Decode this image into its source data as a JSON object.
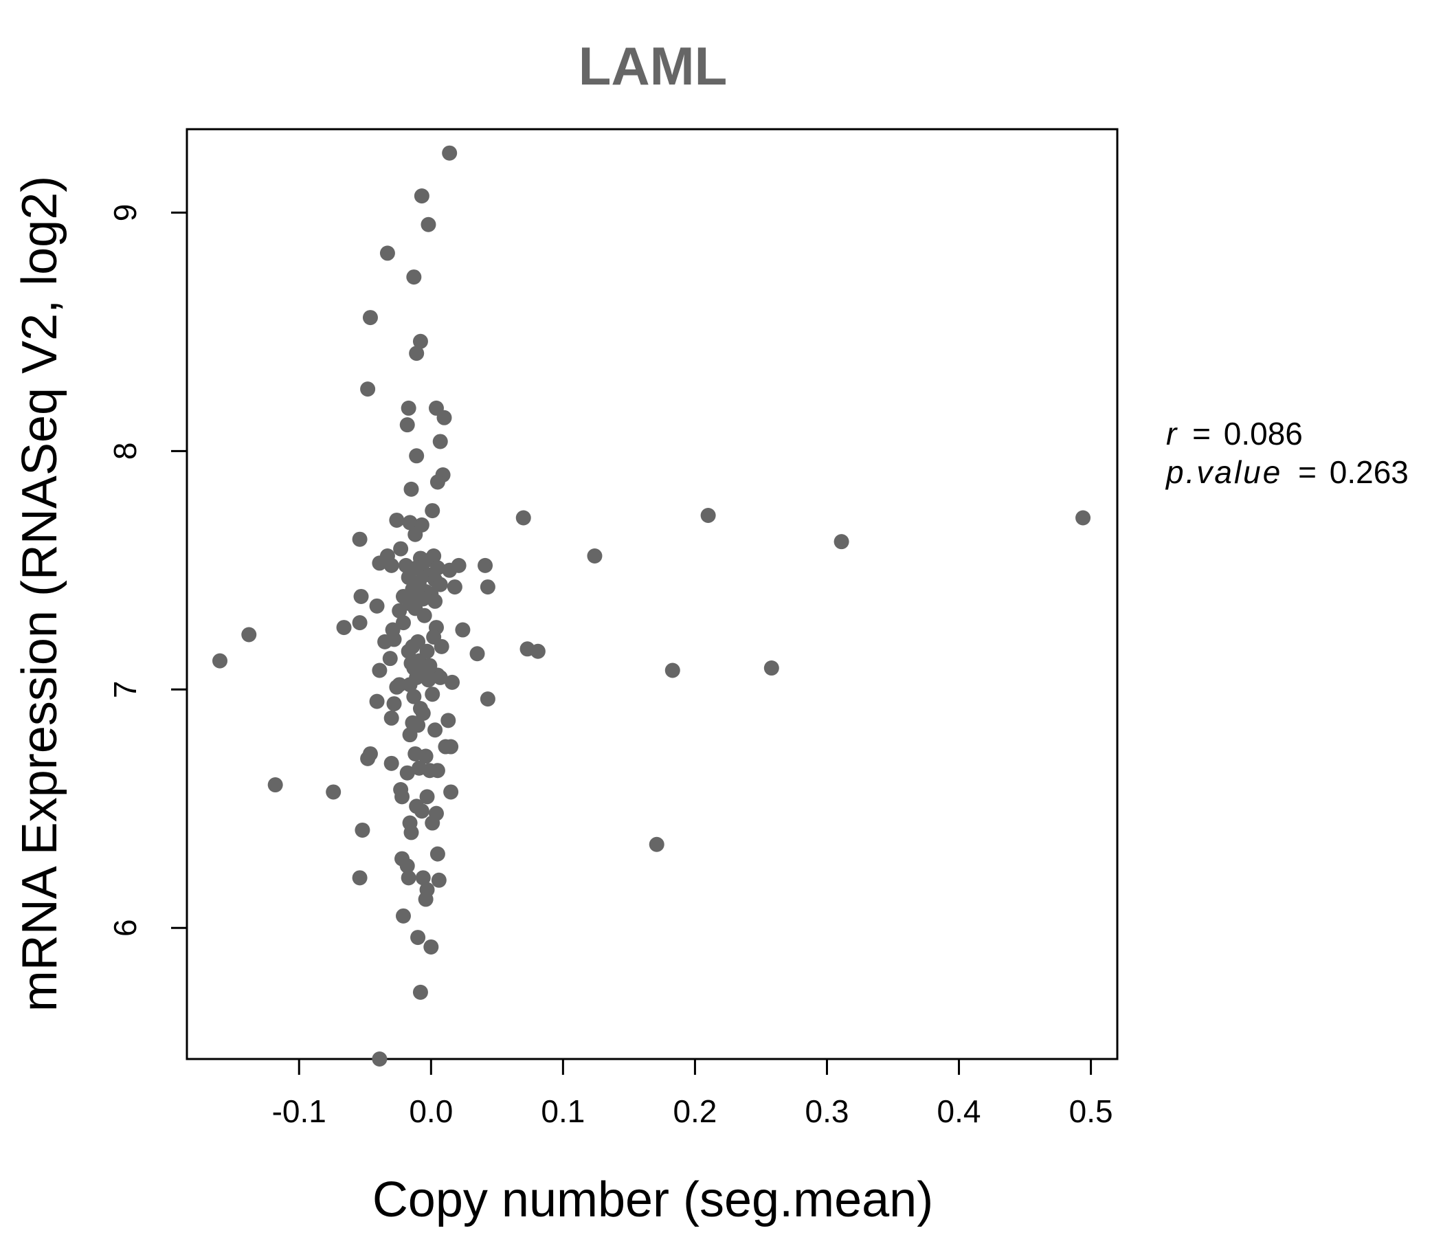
{
  "chart_data": {
    "type": "scatter",
    "title": "LAML",
    "xlabel": "Copy number (seg.mean)",
    "ylabel": "mRNA Expression (RNASeq V2, log2)",
    "xlim": [
      -0.185,
      0.52
    ],
    "ylim": [
      5.45,
      9.35
    ],
    "x_ticks": [
      -0.1,
      0.0,
      0.1,
      0.2,
      0.3,
      0.4,
      0.5
    ],
    "x_tick_labels": [
      "-0.1",
      "0.0",
      "0.1",
      "0.2",
      "0.3",
      "0.4",
      "0.5"
    ],
    "y_ticks": [
      6,
      7,
      8,
      9
    ],
    "y_tick_labels": [
      "6",
      "7",
      "8",
      "9"
    ],
    "grid": false,
    "marker_color": "#666666",
    "annotation": {
      "r_label": "r",
      "r_value": "0.086",
      "p_label": "p.value",
      "p_value": "0.263",
      "equals": "="
    },
    "points": [
      [
        0.014,
        9.25
      ],
      [
        -0.007,
        9.07
      ],
      [
        -0.002,
        8.95
      ],
      [
        -0.033,
        8.83
      ],
      [
        -0.013,
        8.73
      ],
      [
        -0.046,
        8.56
      ],
      [
        -0.008,
        8.46
      ],
      [
        -0.011,
        8.41
      ],
      [
        -0.048,
        8.26
      ],
      [
        -0.017,
        8.18
      ],
      [
        0.004,
        8.18
      ],
      [
        0.01,
        8.14
      ],
      [
        -0.018,
        8.11
      ],
      [
        0.007,
        8.04
      ],
      [
        -0.011,
        7.98
      ],
      [
        0.009,
        7.9
      ],
      [
        0.005,
        7.87
      ],
      [
        -0.015,
        7.84
      ],
      [
        0.001,
        7.75
      ],
      [
        0.07,
        7.72
      ],
      [
        0.21,
        7.73
      ],
      [
        0.494,
        7.72
      ],
      [
        -0.026,
        7.71
      ],
      [
        -0.016,
        7.7
      ],
      [
        -0.007,
        7.69
      ],
      [
        -0.012,
        7.65
      ],
      [
        -0.054,
        7.63
      ],
      [
        0.311,
        7.62
      ],
      [
        -0.023,
        7.59
      ],
      [
        -0.033,
        7.56
      ],
      [
        0.002,
        7.56
      ],
      [
        0.124,
        7.56
      ],
      [
        -0.008,
        7.55
      ],
      [
        -0.004,
        7.54
      ],
      [
        -0.039,
        7.53
      ],
      [
        -0.03,
        7.52
      ],
      [
        -0.019,
        7.52
      ],
      [
        0.021,
        7.52
      ],
      [
        0.041,
        7.52
      ],
      [
        -0.011,
        7.51
      ],
      [
        0.005,
        7.51
      ],
      [
        0.014,
        7.5
      ],
      [
        -0.006,
        7.49
      ],
      [
        -0.001,
        7.48
      ],
      [
        -0.017,
        7.47
      ],
      [
        0.003,
        7.46
      ],
      [
        -0.009,
        7.45
      ],
      [
        0.007,
        7.44
      ],
      [
        0.018,
        7.43
      ],
      [
        0.043,
        7.43
      ],
      [
        -0.014,
        7.42
      ],
      [
        -0.004,
        7.41
      ],
      [
        -0.01,
        7.4
      ],
      [
        0.0,
        7.4
      ],
      [
        -0.021,
        7.39
      ],
      [
        -0.053,
        7.39
      ],
      [
        -0.006,
        7.38
      ],
      [
        0.003,
        7.37
      ],
      [
        -0.016,
        7.36
      ],
      [
        -0.041,
        7.35
      ],
      [
        -0.012,
        7.34
      ],
      [
        -0.024,
        7.33
      ],
      [
        -0.005,
        7.31
      ],
      [
        -0.054,
        7.28
      ],
      [
        -0.021,
        7.28
      ],
      [
        0.004,
        7.26
      ],
      [
        0.024,
        7.25
      ],
      [
        -0.066,
        7.26
      ],
      [
        -0.029,
        7.25
      ],
      [
        -0.138,
        7.23
      ],
      [
        0.002,
        7.22
      ],
      [
        -0.028,
        7.21
      ],
      [
        -0.01,
        7.2
      ],
      [
        -0.035,
        7.2
      ],
      [
        -0.014,
        7.18
      ],
      [
        0.008,
        7.18
      ],
      [
        -0.017,
        7.16
      ],
      [
        -0.003,
        7.16
      ],
      [
        0.073,
        7.17
      ],
      [
        0.081,
        7.16
      ],
      [
        0.035,
        7.15
      ],
      [
        -0.031,
        7.13
      ],
      [
        -0.009,
        7.12
      ],
      [
        -0.16,
        7.12
      ],
      [
        -0.015,
        7.11
      ],
      [
        -0.001,
        7.1
      ],
      [
        -0.013,
        7.09
      ],
      [
        0.183,
        7.08
      ],
      [
        -0.039,
        7.08
      ],
      [
        0.258,
        7.09
      ],
      [
        -0.006,
        7.07
      ],
      [
        0.005,
        7.06
      ],
      [
        -0.011,
        7.05
      ],
      [
        0.007,
        7.05
      ],
      [
        -0.002,
        7.04
      ],
      [
        0.016,
        7.03
      ],
      [
        -0.024,
        7.02
      ],
      [
        -0.016,
        7.02
      ],
      [
        -0.026,
        7.01
      ],
      [
        0.001,
        6.98
      ],
      [
        -0.013,
        6.97
      ],
      [
        0.043,
        6.96
      ],
      [
        -0.041,
        6.95
      ],
      [
        -0.028,
        6.94
      ],
      [
        -0.008,
        6.92
      ],
      [
        -0.006,
        6.9
      ],
      [
        -0.03,
        6.88
      ],
      [
        0.013,
        6.87
      ],
      [
        -0.014,
        6.86
      ],
      [
        -0.01,
        6.85
      ],
      [
        0.003,
        6.83
      ],
      [
        -0.016,
        6.81
      ],
      [
        0.011,
        6.76
      ],
      [
        0.015,
        6.76
      ],
      [
        -0.046,
        6.73
      ],
      [
        -0.048,
        6.71
      ],
      [
        -0.012,
        6.73
      ],
      [
        -0.004,
        6.72
      ],
      [
        -0.03,
        6.69
      ],
      [
        -0.009,
        6.67
      ],
      [
        0.005,
        6.66
      ],
      [
        -0.018,
        6.65
      ],
      [
        -0.001,
        6.66
      ],
      [
        -0.118,
        6.6
      ],
      [
        -0.023,
        6.58
      ],
      [
        -0.074,
        6.57
      ],
      [
        0.015,
        6.57
      ],
      [
        -0.022,
        6.55
      ],
      [
        -0.003,
        6.55
      ],
      [
        -0.011,
        6.51
      ],
      [
        0.004,
        6.48
      ],
      [
        -0.007,
        6.49
      ],
      [
        -0.016,
        6.44
      ],
      [
        0.001,
        6.44
      ],
      [
        -0.052,
        6.41
      ],
      [
        -0.015,
        6.4
      ],
      [
        0.171,
        6.35
      ],
      [
        0.005,
        6.31
      ],
      [
        -0.022,
        6.29
      ],
      [
        -0.018,
        6.26
      ],
      [
        -0.054,
        6.21
      ],
      [
        -0.017,
        6.21
      ],
      [
        -0.006,
        6.21
      ],
      [
        0.006,
        6.2
      ],
      [
        -0.003,
        6.16
      ],
      [
        -0.004,
        6.12
      ],
      [
        -0.021,
        6.05
      ],
      [
        -0.01,
        5.96
      ],
      [
        0.0,
        5.92
      ],
      [
        -0.008,
        5.73
      ],
      [
        -0.039,
        5.45
      ]
    ]
  }
}
